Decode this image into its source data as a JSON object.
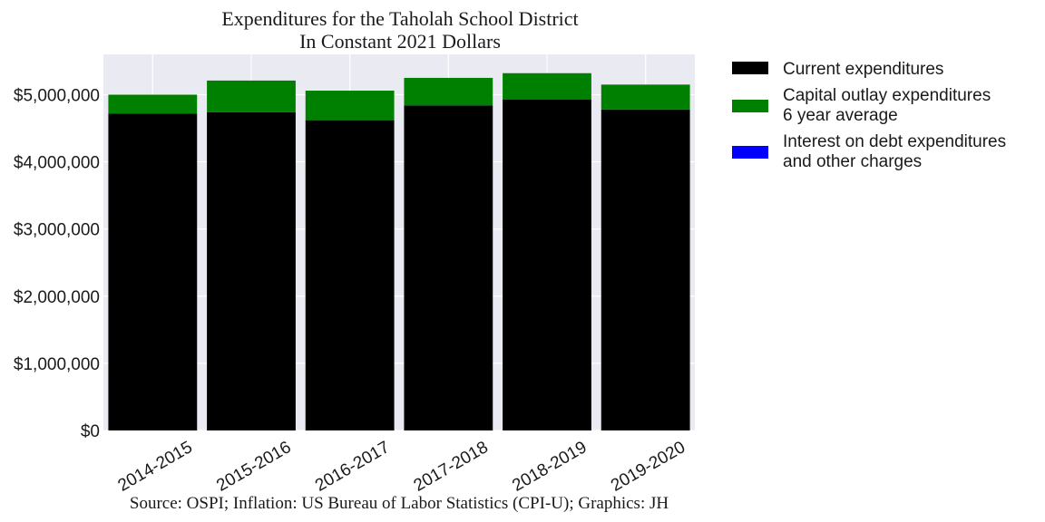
{
  "chart_data": {
    "type": "bar",
    "stacked": true,
    "title": [
      "Expenditures for the Taholah School District",
      "In Constant 2021 Dollars"
    ],
    "categories": [
      "2014-2015",
      "2015-2016",
      "2016-2017",
      "2017-2018",
      "2018-2019",
      "2019-2020"
    ],
    "series": [
      {
        "name": "Current expenditures",
        "color": "#000000",
        "values": [
          4720000,
          4740000,
          4620000,
          4840000,
          4930000,
          4780000
        ]
      },
      {
        "name": "Capital outlay expenditures\n6 year average",
        "color": "#008000",
        "values": [
          280000,
          470000,
          440000,
          410000,
          390000,
          370000
        ]
      },
      {
        "name": "Interest on debt expenditures\nand other charges",
        "color": "#0000ff",
        "values": [
          0,
          0,
          0,
          0,
          0,
          0
        ]
      }
    ],
    "yticks": [
      0,
      1000000,
      2000000,
      3000000,
      4000000,
      5000000
    ],
    "ytick_labels": [
      "$0",
      "$1,000,000",
      "$2,000,000",
      "$3,000,000",
      "$4,000,000",
      "$5,000,000"
    ],
    "ylim": [
      0,
      5600000
    ],
    "grid": true,
    "legend_position": "outside-right",
    "source": "Source: OSPI; Inflation: US Bureau of Labor Statistics (CPI-U); Graphics: JH"
  }
}
